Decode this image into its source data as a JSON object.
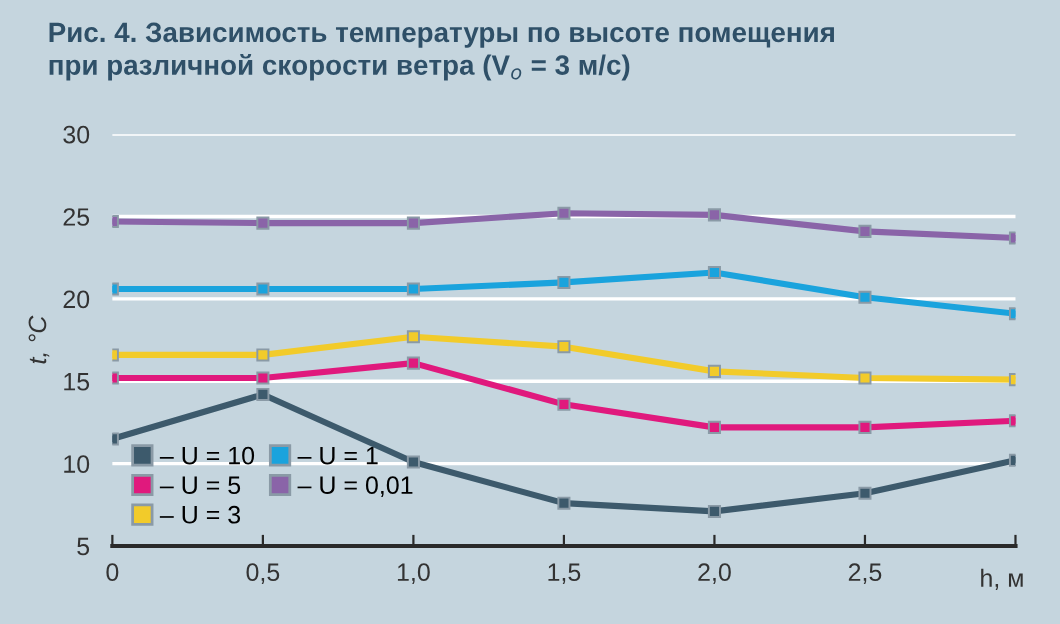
{
  "chart_data": {
    "type": "line",
    "title": "Рис. 4. Зависимость температуры по высоте помещения\nпри различной скорости ветра (V$_{о}$ = 3 м/с)",
    "xlabel": "h, м",
    "ylabel": "t, °C",
    "x": [
      0,
      0.5,
      1.0,
      1.5,
      2.0,
      2.5,
      3.0
    ],
    "xlim": [
      0,
      3.0
    ],
    "xticks": [
      {
        "value": 0,
        "label": "0"
      },
      {
        "value": 0.5,
        "label": "0,5"
      },
      {
        "value": 1.0,
        "label": "1,0"
      },
      {
        "value": 1.5,
        "label": "1,5"
      },
      {
        "value": 2.0,
        "label": "2,0"
      },
      {
        "value": 2.5,
        "label": "2,5"
      },
      {
        "value": 3.0,
        "label": null
      }
    ],
    "ylim": [
      5,
      30
    ],
    "yticks": [
      5,
      10,
      15,
      20,
      25,
      30
    ],
    "grid": "y",
    "legend": "bottom left",
    "marker": "square",
    "line_style": "solid",
    "series": [
      {
        "name": "– U = 10",
        "color": "#3d5a6c",
        "values": [
          11.5,
          14.2,
          10.1,
          7.6,
          7.1,
          8.2,
          10.2
        ]
      },
      {
        "name": "– U = 5",
        "color": "#e0197d",
        "values": [
          15.2,
          15.2,
          16.1,
          13.6,
          12.2,
          12.2,
          12.6
        ]
      },
      {
        "name": "– U = 3",
        "color": "#f2cb2a",
        "values": [
          16.6,
          16.6,
          17.7,
          17.1,
          15.6,
          15.2,
          15.1
        ]
      },
      {
        "name": "– U = 1",
        "color": "#1aa3dd",
        "values": [
          20.6,
          20.6,
          20.6,
          21.0,
          21.6,
          20.1,
          19.1
        ]
      },
      {
        "name": "– U = 0,01",
        "color": "#8a64a8",
        "values": [
          24.7,
          24.6,
          24.6,
          25.2,
          25.1,
          24.1,
          23.7
        ]
      }
    ]
  }
}
